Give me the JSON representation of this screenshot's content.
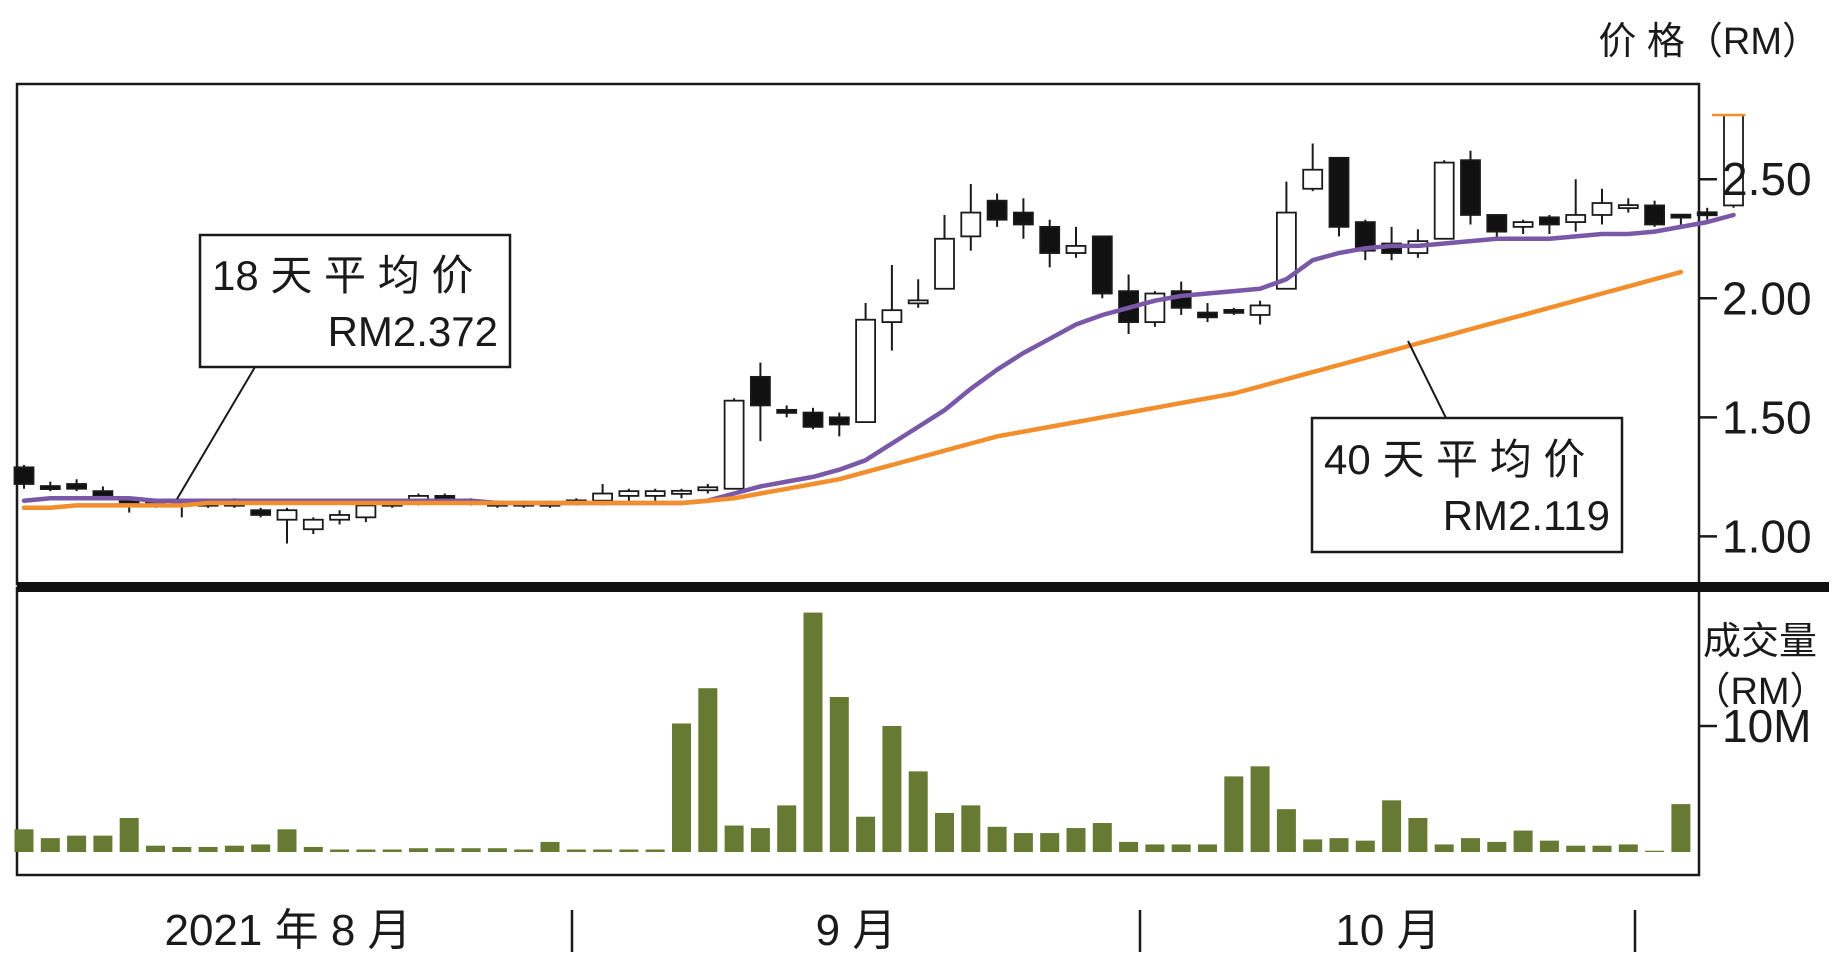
{
  "chart_data": [
    {
      "type": "candlestick",
      "title": "",
      "y_axis_label": "价 格（RM）",
      "y_ticks": [
        "2.50",
        "2.00",
        "1.50",
        "1.00"
      ],
      "y_tick_values": [
        2.5,
        2.0,
        1.5,
        1.0
      ],
      "ylim": [
        0.8,
        2.9
      ],
      "candles": [
        {
          "o": 1.29,
          "h": 1.3,
          "l": 1.2,
          "c": 1.22
        },
        {
          "o": 1.21,
          "h": 1.23,
          "l": 1.19,
          "c": 1.2
        },
        {
          "o": 1.22,
          "h": 1.24,
          "l": 1.19,
          "c": 1.2
        },
        {
          "o": 1.19,
          "h": 1.21,
          "l": 1.16,
          "c": 1.17
        },
        {
          "o": 1.15,
          "h": 1.16,
          "l": 1.1,
          "c": 1.14
        },
        {
          "o": 1.14,
          "h": 1.15,
          "l": 1.12,
          "c": 1.13
        },
        {
          "o": 1.14,
          "h": 1.15,
          "l": 1.08,
          "c": 1.13
        },
        {
          "o": 1.14,
          "h": 1.15,
          "l": 1.12,
          "c": 1.13
        },
        {
          "o": 1.14,
          "h": 1.16,
          "l": 1.12,
          "c": 1.13
        },
        {
          "o": 1.11,
          "h": 1.12,
          "l": 1.08,
          "c": 1.09
        },
        {
          "o": 1.07,
          "h": 1.12,
          "l": 0.97,
          "c": 1.11
        },
        {
          "o": 1.03,
          "h": 1.08,
          "l": 1.01,
          "c": 1.07
        },
        {
          "o": 1.07,
          "h": 1.11,
          "l": 1.05,
          "c": 1.09
        },
        {
          "o": 1.08,
          "h": 1.14,
          "l": 1.06,
          "c": 1.13
        },
        {
          "o": 1.14,
          "h": 1.15,
          "l": 1.12,
          "c": 1.13
        },
        {
          "o": 1.15,
          "h": 1.18,
          "l": 1.13,
          "c": 1.17
        },
        {
          "o": 1.17,
          "h": 1.18,
          "l": 1.14,
          "c": 1.15
        },
        {
          "o": 1.15,
          "h": 1.16,
          "l": 1.13,
          "c": 1.14
        },
        {
          "o": 1.14,
          "h": 1.15,
          "l": 1.12,
          "c": 1.13
        },
        {
          "o": 1.14,
          "h": 1.15,
          "l": 1.12,
          "c": 1.13
        },
        {
          "o": 1.14,
          "h": 1.15,
          "l": 1.12,
          "c": 1.13
        },
        {
          "o": 1.15,
          "h": 1.16,
          "l": 1.13,
          "c": 1.14
        },
        {
          "o": 1.15,
          "h": 1.22,
          "l": 1.13,
          "c": 1.18
        },
        {
          "o": 1.17,
          "h": 1.2,
          "l": 1.15,
          "c": 1.19
        },
        {
          "o": 1.17,
          "h": 1.2,
          "l": 1.15,
          "c": 1.19
        },
        {
          "o": 1.18,
          "h": 1.2,
          "l": 1.16,
          "c": 1.19
        },
        {
          "o": 1.2,
          "h": 1.22,
          "l": 1.18,
          "c": 1.2
        },
        {
          "o": 1.2,
          "h": 1.58,
          "l": 1.2,
          "c": 1.57
        },
        {
          "o": 1.67,
          "h": 1.73,
          "l": 1.4,
          "c": 1.55
        },
        {
          "o": 1.53,
          "h": 1.55,
          "l": 1.5,
          "c": 1.52
        },
        {
          "o": 1.52,
          "h": 1.54,
          "l": 1.45,
          "c": 1.46
        },
        {
          "o": 1.5,
          "h": 1.52,
          "l": 1.42,
          "c": 1.47
        },
        {
          "o": 1.48,
          "h": 1.98,
          "l": 1.48,
          "c": 1.91
        },
        {
          "o": 1.9,
          "h": 2.14,
          "l": 1.78,
          "c": 1.95
        },
        {
          "o": 1.98,
          "h": 2.08,
          "l": 1.96,
          "c": 1.99
        },
        {
          "o": 2.04,
          "h": 2.35,
          "l": 2.04,
          "c": 2.25
        },
        {
          "o": 2.26,
          "h": 2.48,
          "l": 2.2,
          "c": 2.36
        },
        {
          "o": 2.41,
          "h": 2.44,
          "l": 2.3,
          "c": 2.33
        },
        {
          "o": 2.36,
          "h": 2.42,
          "l": 2.25,
          "c": 2.31
        },
        {
          "o": 2.3,
          "h": 2.33,
          "l": 2.13,
          "c": 2.19
        },
        {
          "o": 2.19,
          "h": 2.3,
          "l": 2.17,
          "c": 2.22
        },
        {
          "o": 2.26,
          "h": 2.26,
          "l": 2.0,
          "c": 2.02
        },
        {
          "o": 2.03,
          "h": 2.1,
          "l": 1.85,
          "c": 1.9
        },
        {
          "o": 1.9,
          "h": 2.03,
          "l": 1.88,
          "c": 2.02
        },
        {
          "o": 2.03,
          "h": 2.07,
          "l": 1.93,
          "c": 1.96
        },
        {
          "o": 1.94,
          "h": 1.98,
          "l": 1.9,
          "c": 1.92
        },
        {
          "o": 1.95,
          "h": 1.96,
          "l": 1.93,
          "c": 1.94
        },
        {
          "o": 1.93,
          "h": 1.99,
          "l": 1.89,
          "c": 1.97
        },
        {
          "o": 2.04,
          "h": 2.49,
          "l": 2.04,
          "c": 2.36
        },
        {
          "o": 2.46,
          "h": 2.65,
          "l": 2.45,
          "c": 2.54
        },
        {
          "o": 2.59,
          "h": 2.59,
          "l": 2.26,
          "c": 2.3
        },
        {
          "o": 2.32,
          "h": 2.33,
          "l": 2.16,
          "c": 2.2
        },
        {
          "o": 2.23,
          "h": 2.3,
          "l": 2.16,
          "c": 2.19
        },
        {
          "o": 2.19,
          "h": 2.29,
          "l": 2.17,
          "c": 2.24
        },
        {
          "o": 2.25,
          "h": 2.58,
          "l": 2.25,
          "c": 2.57
        },
        {
          "o": 2.58,
          "h": 2.62,
          "l": 2.31,
          "c": 2.35
        },
        {
          "o": 2.35,
          "h": 2.35,
          "l": 2.25,
          "c": 2.28
        },
        {
          "o": 2.3,
          "h": 2.33,
          "l": 2.27,
          "c": 2.32
        },
        {
          "o": 2.34,
          "h": 2.35,
          "l": 2.27,
          "c": 2.31
        },
        {
          "o": 2.32,
          "h": 2.5,
          "l": 2.28,
          "c": 2.35
        },
        {
          "o": 2.35,
          "h": 2.46,
          "l": 2.31,
          "c": 2.4
        },
        {
          "o": 2.38,
          "h": 2.42,
          "l": 2.36,
          "c": 2.39
        },
        {
          "o": 2.39,
          "h": 2.41,
          "l": 2.3,
          "c": 2.31
        },
        {
          "o": 2.35,
          "h": 2.35,
          "l": 2.3,
          "c": 2.34
        },
        {
          "o": 2.36,
          "h": 2.38,
          "l": 2.33,
          "c": 2.35
        },
        {
          "o": 2.39,
          "h": 2.77,
          "l": 2.38,
          "c": 2.77
        }
      ],
      "ma_series": [
        {
          "name": "18 天 平 均 价",
          "last_value_label": "RM2.372",
          "color": "#7a58a8",
          "values": [
            1.15,
            1.16,
            1.16,
            1.16,
            1.16,
            1.15,
            1.15,
            1.15,
            1.15,
            1.15,
            1.15,
            1.15,
            1.15,
            1.15,
            1.15,
            1.15,
            1.15,
            1.15,
            1.14,
            1.14,
            1.14,
            1.14,
            1.14,
            1.14,
            1.14,
            1.14,
            1.15,
            1.18,
            1.21,
            1.23,
            1.25,
            1.28,
            1.32,
            1.39,
            1.46,
            1.53,
            1.62,
            1.7,
            1.77,
            1.83,
            1.89,
            1.93,
            1.96,
            1.99,
            2.01,
            2.02,
            2.03,
            2.04,
            2.08,
            2.16,
            2.19,
            2.21,
            2.22,
            2.22,
            2.23,
            2.24,
            2.25,
            2.25,
            2.25,
            2.26,
            2.27,
            2.27,
            2.28,
            2.3,
            2.32,
            2.35
          ]
        },
        {
          "name": "40 天 平 均 价",
          "last_value_label": "RM2.119",
          "color": "#f28f2c",
          "values": [
            1.12,
            1.12,
            1.13,
            1.13,
            1.13,
            1.13,
            1.13,
            1.14,
            1.14,
            1.14,
            1.14,
            1.14,
            1.14,
            1.14,
            1.14,
            1.14,
            1.14,
            1.14,
            1.14,
            1.14,
            1.14,
            1.14,
            1.14,
            1.14,
            1.14,
            1.14,
            1.15,
            1.16,
            1.18,
            1.2,
            1.22,
            1.24,
            1.27,
            1.3,
            1.33,
            1.36,
            1.39,
            1.42,
            1.44,
            1.46,
            1.48,
            1.5,
            1.52,
            1.54,
            1.56,
            1.58,
            1.6,
            1.63,
            1.66,
            1.69,
            1.72,
            1.75,
            1.78,
            1.81,
            1.84,
            1.87,
            1.9,
            1.93,
            1.96,
            1.99,
            2.02,
            2.05,
            2.08,
            2.11
          ]
        }
      ]
    },
    {
      "type": "bar",
      "y_axis_label": [
        "成交量",
        "（RM）"
      ],
      "y_ticks": [
        "10M"
      ],
      "y_tick_values": [
        10
      ],
      "ylim": [
        0,
        20
      ],
      "color": "#667a33",
      "values": [
        1.8,
        1.1,
        1.3,
        1.3,
        2.7,
        0.5,
        0.4,
        0.4,
        0.5,
        0.6,
        1.8,
        0.4,
        0.2,
        0.2,
        0.2,
        0.3,
        0.3,
        0.3,
        0.3,
        0.2,
        0.8,
        0.2,
        0.2,
        0.2,
        0.2,
        10.2,
        13.0,
        2.1,
        1.9,
        3.7,
        19.0,
        12.3,
        2.8,
        10.0,
        6.4,
        3.1,
        3.7,
        2.0,
        1.5,
        1.5,
        1.9,
        2.3,
        0.8,
        0.6,
        0.6,
        0.6,
        6.0,
        6.8,
        3.4,
        1.0,
        1.1,
        0.9,
        4.1,
        2.7,
        0.6,
        1.1,
        0.8,
        1.7,
        0.9,
        0.5,
        0.5,
        0.6,
        0.1,
        3.8
      ]
    }
  ],
  "x_axis": {
    "months": [
      "2021 年 8 月",
      "9 月",
      "10 月"
    ]
  },
  "annotations": {
    "ma18_label": "18 天 平 均 价",
    "ma18_value": "RM2.372",
    "ma40_label": "40 天 平 均 价",
    "ma40_value": "RM2.119"
  }
}
